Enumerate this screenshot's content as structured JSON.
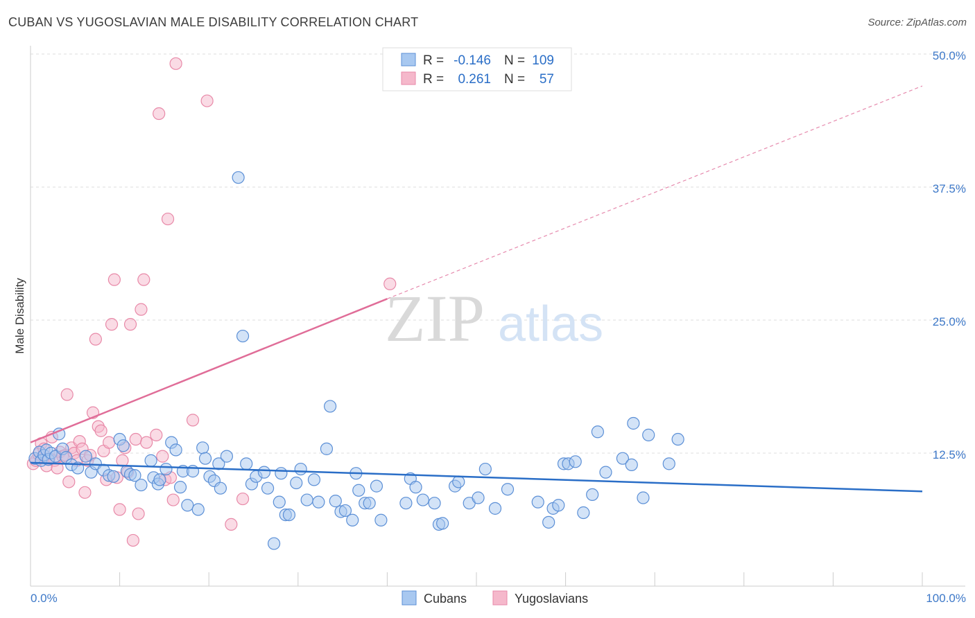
{
  "title": "CUBAN VS YUGOSLAVIAN MALE DISABILITY CORRELATION CHART",
  "source": "Source: ZipAtlas.com",
  "watermark": {
    "zip": "ZIP",
    "atlas": "atlas"
  },
  "legend_top": {
    "rows": [
      {
        "r_label": "R =",
        "r_value": "-0.146",
        "n_label": "N =",
        "n_value": "109"
      },
      {
        "r_label": "R =",
        "r_value": "0.261",
        "n_label": "N =",
        "n_value": "57"
      }
    ]
  },
  "legend_bottom": {
    "items": [
      "Cubans",
      "Yugoslavians"
    ]
  },
  "colors": {
    "cubans_fill": "#a8c8f0",
    "cubans_stroke": "#5b8fd6",
    "cubans_line": "#2a6ec7",
    "yugo_fill": "#f5b8cb",
    "yugo_stroke": "#e889a8",
    "yugo_line": "#e06d98",
    "axis_label": "#3d78c8",
    "grid": "#dddddd"
  },
  "chart_data": {
    "type": "scatter",
    "title": "CUBAN VS YUGOSLAVIAN MALE DISABILITY CORRELATION CHART",
    "xlabel": "",
    "ylabel": "Male Disability",
    "xlim": [
      0,
      100
    ],
    "ylim": [
      0,
      50
    ],
    "x_tick_labels": [
      "0.0%",
      "100.0%"
    ],
    "y_ticks": [
      12.5,
      25.0,
      37.5,
      50.0
    ],
    "y_tick_labels": [
      "12.5%",
      "25.0%",
      "37.5%",
      "50.0%"
    ],
    "grid": true,
    "legend_position": "top-center",
    "series": [
      {
        "name": "Cubans",
        "R": -0.146,
        "N": 109,
        "trend": {
          "x": [
            0,
            100
          ],
          "y": [
            11.6,
            8.9
          ]
        },
        "points": [
          [
            0.5,
            12.0
          ],
          [
            1.0,
            12.6
          ],
          [
            1.2,
            11.8
          ],
          [
            1.5,
            12.3
          ],
          [
            1.8,
            12.8
          ],
          [
            2.0,
            11.9
          ],
          [
            2.3,
            12.5
          ],
          [
            2.8,
            12.2
          ],
          [
            3.2,
            14.3
          ],
          [
            3.6,
            12.9
          ],
          [
            4.0,
            12.1
          ],
          [
            4.6,
            11.4
          ],
          [
            5.3,
            11.1
          ],
          [
            6.2,
            12.2
          ],
          [
            6.8,
            10.7
          ],
          [
            7.3,
            11.5
          ],
          [
            8.2,
            10.9
          ],
          [
            8.8,
            10.4
          ],
          [
            9.3,
            10.3
          ],
          [
            10.0,
            13.8
          ],
          [
            10.4,
            13.2
          ],
          [
            10.8,
            10.8
          ],
          [
            11.2,
            10.5
          ],
          [
            11.7,
            10.4
          ],
          [
            12.4,
            9.5
          ],
          [
            13.5,
            11.8
          ],
          [
            13.8,
            10.2
          ],
          [
            14.3,
            9.6
          ],
          [
            14.5,
            10.0
          ],
          [
            15.2,
            11.0
          ],
          [
            15.8,
            13.5
          ],
          [
            16.3,
            12.8
          ],
          [
            16.8,
            9.3
          ],
          [
            17.1,
            10.8
          ],
          [
            17.6,
            7.6
          ],
          [
            18.2,
            10.8
          ],
          [
            18.8,
            7.2
          ],
          [
            19.3,
            13.0
          ],
          [
            19.6,
            12.0
          ],
          [
            20.1,
            10.3
          ],
          [
            20.6,
            9.9
          ],
          [
            21.1,
            11.5
          ],
          [
            21.3,
            9.2
          ],
          [
            22.0,
            12.2
          ],
          [
            23.3,
            38.4
          ],
          [
            23.8,
            23.5
          ],
          [
            24.2,
            11.5
          ],
          [
            24.8,
            9.6
          ],
          [
            25.3,
            10.3
          ],
          [
            26.2,
            10.7
          ],
          [
            26.6,
            9.2
          ],
          [
            27.3,
            4.0
          ],
          [
            27.9,
            7.9
          ],
          [
            28.1,
            10.6
          ],
          [
            28.6,
            6.7
          ],
          [
            29.0,
            6.7
          ],
          [
            29.8,
            9.7
          ],
          [
            30.3,
            11.0
          ],
          [
            31.0,
            8.1
          ],
          [
            31.8,
            10.0
          ],
          [
            32.3,
            7.9
          ],
          [
            33.2,
            12.9
          ],
          [
            33.6,
            16.9
          ],
          [
            34.2,
            8.0
          ],
          [
            34.8,
            7.0
          ],
          [
            35.3,
            7.1
          ],
          [
            36.1,
            6.2
          ],
          [
            36.5,
            10.6
          ],
          [
            36.8,
            9.0
          ],
          [
            37.5,
            7.8
          ],
          [
            38.0,
            7.8
          ],
          [
            38.8,
            9.4
          ],
          [
            39.3,
            6.2
          ],
          [
            42.1,
            7.8
          ],
          [
            42.6,
            10.1
          ],
          [
            43.2,
            9.3
          ],
          [
            44.0,
            8.1
          ],
          [
            45.3,
            7.8
          ],
          [
            45.8,
            5.8
          ],
          [
            46.2,
            5.9
          ],
          [
            47.6,
            9.4
          ],
          [
            48.0,
            9.8
          ],
          [
            49.2,
            7.8
          ],
          [
            50.2,
            8.3
          ],
          [
            51.0,
            11.0
          ],
          [
            52.1,
            7.3
          ],
          [
            53.5,
            9.1
          ],
          [
            56.9,
            7.9
          ],
          [
            58.1,
            6.0
          ],
          [
            58.6,
            7.3
          ],
          [
            59.2,
            7.6
          ],
          [
            59.8,
            11.5
          ],
          [
            60.3,
            11.5
          ],
          [
            61.1,
            11.7
          ],
          [
            62.0,
            6.9
          ],
          [
            63.0,
            8.6
          ],
          [
            63.6,
            14.5
          ],
          [
            64.5,
            10.7
          ],
          [
            66.4,
            12.0
          ],
          [
            67.4,
            11.4
          ],
          [
            67.6,
            15.3
          ],
          [
            68.7,
            8.3
          ],
          [
            69.3,
            14.2
          ],
          [
            71.6,
            11.5
          ],
          [
            72.6,
            13.8
          ]
        ]
      },
      {
        "name": "Yugoslavians",
        "R": 0.261,
        "N": 57,
        "trend": {
          "x": [
            0,
            40
          ],
          "y": [
            13.5,
            27.0
          ]
        },
        "trend_extension": {
          "x": [
            40,
            100
          ],
          "y": [
            27.0,
            47.0
          ]
        },
        "points": [
          [
            0.3,
            11.5
          ],
          [
            0.6,
            11.8
          ],
          [
            0.9,
            12.4
          ],
          [
            1.2,
            13.4
          ],
          [
            1.5,
            12.9
          ],
          [
            1.8,
            11.3
          ],
          [
            2.1,
            12.0
          ],
          [
            2.4,
            14.0
          ],
          [
            2.7,
            11.8
          ],
          [
            3.0,
            11.1
          ],
          [
            3.3,
            12.6
          ],
          [
            3.6,
            12.2
          ],
          [
            3.9,
            12.3
          ],
          [
            4.1,
            18.0
          ],
          [
            4.3,
            9.8
          ],
          [
            4.6,
            13.0
          ],
          [
            4.9,
            12.5
          ],
          [
            5.2,
            11.8
          ],
          [
            5.5,
            13.6
          ],
          [
            5.8,
            12.9
          ],
          [
            6.1,
            8.8
          ],
          [
            6.4,
            11.8
          ],
          [
            6.7,
            12.3
          ],
          [
            7.0,
            16.3
          ],
          [
            7.3,
            23.2
          ],
          [
            7.6,
            15.0
          ],
          [
            7.9,
            14.6
          ],
          [
            8.2,
            12.7
          ],
          [
            8.5,
            10.0
          ],
          [
            8.8,
            13.5
          ],
          [
            9.1,
            24.6
          ],
          [
            9.4,
            28.8
          ],
          [
            9.7,
            10.2
          ],
          [
            10.0,
            7.2
          ],
          [
            10.3,
            11.8
          ],
          [
            10.6,
            13.0
          ],
          [
            10.9,
            10.7
          ],
          [
            11.2,
            24.6
          ],
          [
            11.5,
            4.3
          ],
          [
            11.8,
            13.8
          ],
          [
            12.1,
            6.8
          ],
          [
            12.4,
            26.0
          ],
          [
            12.7,
            28.8
          ],
          [
            13.0,
            13.5
          ],
          [
            14.1,
            14.2
          ],
          [
            14.4,
            44.4
          ],
          [
            14.8,
            12.2
          ],
          [
            15.1,
            10.0
          ],
          [
            15.4,
            34.5
          ],
          [
            15.7,
            10.2
          ],
          [
            16.0,
            8.1
          ],
          [
            16.3,
            49.1
          ],
          [
            18.2,
            15.6
          ],
          [
            19.8,
            45.6
          ],
          [
            22.5,
            5.8
          ],
          [
            23.8,
            8.2
          ],
          [
            40.3,
            28.4
          ]
        ]
      }
    ]
  }
}
